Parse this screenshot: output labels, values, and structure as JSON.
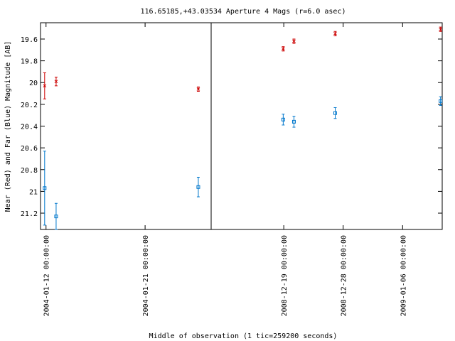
{
  "chart_data": {
    "type": "scatter",
    "title": "116.65185,+43.03534   Aperture 4 Mags (r=6.0 asec)",
    "xlabel": "Middle of observation (1 tic=259200 seconds)",
    "ylabel": "Near (Red) and Far (Blue) Magnitude [AB]",
    "y_inverted": true,
    "ylim": [
      21.35,
      19.45
    ],
    "y_ticks": [
      "19.6",
      "19.8",
      "20",
      "20.2",
      "20.4",
      "20.6",
      "20.8",
      "21",
      "21.2"
    ],
    "y_tick_values": [
      19.6,
      19.8,
      20.0,
      20.2,
      20.4,
      20.6,
      20.8,
      21.0,
      21.2
    ],
    "grid": false,
    "panels": [
      {
        "x_range": [
          "2004-01-11 12:00:00",
          "2004-01-27 00:00:00"
        ],
        "x_ticks": [
          "2004-01-12 00:00:00",
          "2004-01-21 00:00:00"
        ],
        "series": [
          {
            "color": "#cc0000",
            "marker": "x",
            "points": [
              {
                "x": "2004-01-11 21:00:00",
                "y": 20.03,
                "err": 0.12
              },
              {
                "x": "2004-01-12 22:00:00",
                "y": 19.99,
                "err": 0.04
              },
              {
                "x": "2004-01-25 20:00:00",
                "y": 20.06,
                "err": 0.02
              }
            ]
          },
          {
            "color": "#0077cc",
            "marker": "square",
            "points": [
              {
                "x": "2004-01-11 21:00:00",
                "y": 20.97,
                "err": 0.34
              },
              {
                "x": "2004-01-12 22:00:00",
                "y": 21.23,
                "err": 0.12
              },
              {
                "x": "2004-01-25 20:00:00",
                "y": 20.96,
                "err": 0.09
              }
            ]
          }
        ]
      },
      {
        "x_range": [
          "2008-12-08 00:00:00",
          "2009-01-12 00:00:00"
        ],
        "x_ticks": [
          "2008-12-19 00:00:00",
          "2008-12-28 00:00:00",
          "2009-01-06 00:00:00"
        ],
        "series": [
          {
            "color": "#cc0000",
            "marker": "x",
            "points": [
              {
                "x": "2008-12-18 22:00:00",
                "y": 19.69,
                "err": 0.02
              },
              {
                "x": "2008-12-20 13:00:00",
                "y": 19.62,
                "err": 0.02
              },
              {
                "x": "2008-12-26 19:00:00",
                "y": 19.55,
                "err": 0.02
              },
              {
                "x": "2009-01-11 18:00:00",
                "y": 19.51,
                "err": 0.02
              }
            ]
          },
          {
            "color": "#0077cc",
            "marker": "square",
            "points": [
              {
                "x": "2008-12-18 22:00:00",
                "y": 20.34,
                "err": 0.05
              },
              {
                "x": "2008-12-20 13:00:00",
                "y": 20.36,
                "err": 0.05
              },
              {
                "x": "2008-12-26 19:00:00",
                "y": 20.28,
                "err": 0.05
              },
              {
                "x": "2009-01-11 18:00:00",
                "y": 20.17,
                "err": 0.04
              }
            ]
          }
        ]
      }
    ]
  }
}
